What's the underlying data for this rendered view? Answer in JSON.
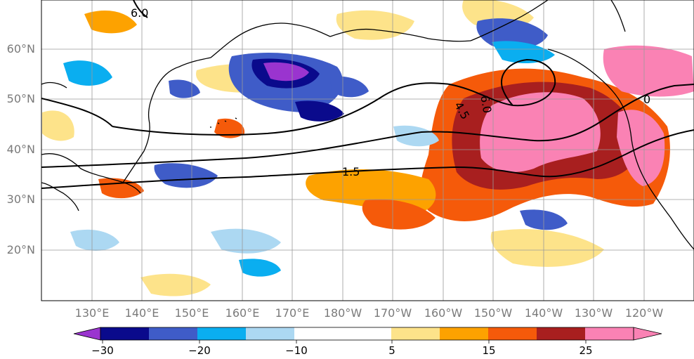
{
  "map": {
    "lat_labels": [
      "60°N",
      "50°N",
      "40°N",
      "30°N",
      "20°N"
    ],
    "lon_labels": [
      "130°E",
      "140°E",
      "150°E",
      "160°E",
      "170°E",
      "180°W",
      "170°W",
      "160°W",
      "150°W",
      "140°W",
      "130°W",
      "120°W"
    ],
    "contour_labels": [
      "6.0",
      "6.0",
      "4.5",
      "1.5",
      "0"
    ]
  },
  "colorbar": {
    "colors": [
      "#9a34cf",
      "#0a0a8c",
      "#3f5cc8",
      "#0aaef0",
      "#acd8f2",
      "#ffffff",
      "#fde38a",
      "#fda200",
      "#f55a0a",
      "#a81f1f",
      "#fa82b4"
    ],
    "tick_labels": [
      "−30",
      "−20",
      "−10",
      "5",
      "15",
      "25"
    ]
  }
}
